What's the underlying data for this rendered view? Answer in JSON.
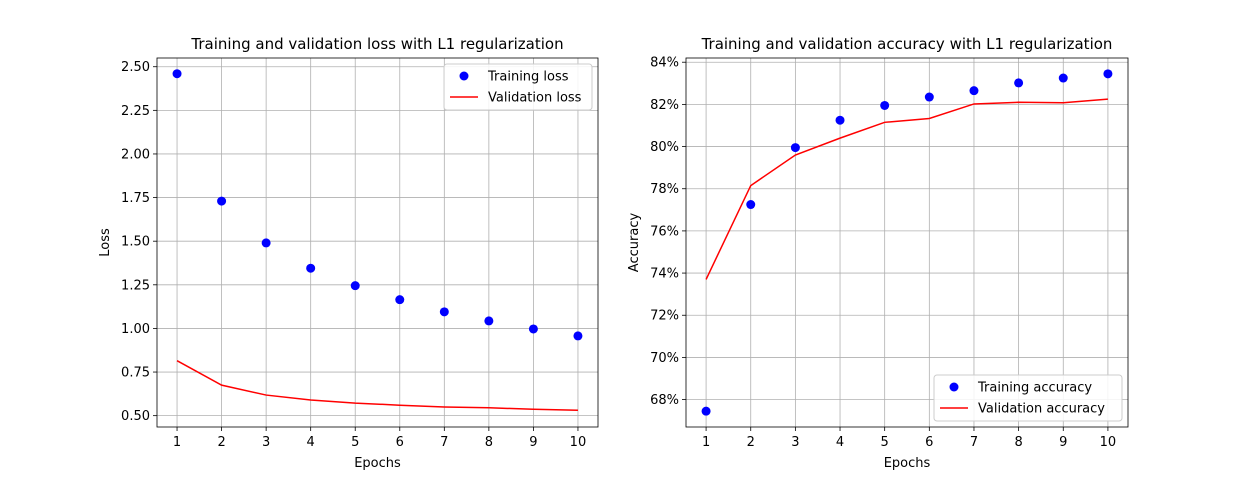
{
  "chart_data": [
    {
      "type": "line",
      "title": "Training and validation loss with L1 regularization",
      "xlabel": "Epochs",
      "ylabel": "Loss",
      "x": [
        1,
        2,
        3,
        4,
        5,
        6,
        7,
        8,
        9,
        10
      ],
      "xticks": [
        1,
        2,
        3,
        4,
        5,
        6,
        7,
        8,
        9,
        10
      ],
      "xlim": [
        0.55,
        10.45
      ],
      "yticks": [
        0.5,
        0.75,
        1.0,
        1.25,
        1.5,
        1.75,
        2.0,
        2.25,
        2.5
      ],
      "ytick_labels": [
        "0.50",
        "0.75",
        "1.00",
        "1.25",
        "1.50",
        "1.75",
        "2.00",
        "2.25",
        "2.50"
      ],
      "ylim": [
        0.435,
        2.55
      ],
      "grid": true,
      "legend_position": "top-right",
      "series": [
        {
          "name": "Training loss",
          "style": "markers",
          "color": "#0000ff",
          "values": [
            2.46,
            1.73,
            1.49,
            1.345,
            1.245,
            1.165,
            1.095,
            1.043,
            0.997,
            0.957
          ]
        },
        {
          "name": "Validation loss",
          "style": "line",
          "color": "#ff0000",
          "values": [
            0.815,
            0.675,
            0.618,
            0.59,
            0.572,
            0.56,
            0.55,
            0.545,
            0.537,
            0.531
          ]
        }
      ]
    },
    {
      "type": "line",
      "title": "Training and validation accuracy with L1 regularization",
      "xlabel": "Epochs",
      "ylabel": "Accuracy",
      "x": [
        1,
        2,
        3,
        4,
        5,
        6,
        7,
        8,
        9,
        10
      ],
      "xticks": [
        1,
        2,
        3,
        4,
        5,
        6,
        7,
        8,
        9,
        10
      ],
      "xlim": [
        0.55,
        10.45
      ],
      "yticks": [
        0.68,
        0.7,
        0.72,
        0.74,
        0.76,
        0.78,
        0.8,
        0.82,
        0.84
      ],
      "ytick_labels": [
        "68%",
        "70%",
        "72%",
        "74%",
        "76%",
        "78%",
        "80%",
        "82%",
        "84%"
      ],
      "ylim": [
        0.667,
        0.842
      ],
      "grid": true,
      "legend_position": "bottom-right",
      "series": [
        {
          "name": "Training accuracy",
          "style": "markers",
          "color": "#0000ff",
          "values": [
            0.6745,
            0.7725,
            0.7995,
            0.8125,
            0.8195,
            0.8235,
            0.8265,
            0.8302,
            0.8325,
            0.8345
          ]
        },
        {
          "name": "Validation accuracy",
          "style": "line",
          "color": "#ff0000",
          "values": [
            0.737,
            0.7815,
            0.796,
            0.804,
            0.8115,
            0.8133,
            0.8202,
            0.821,
            0.8208,
            0.8225
          ]
        }
      ]
    }
  ]
}
